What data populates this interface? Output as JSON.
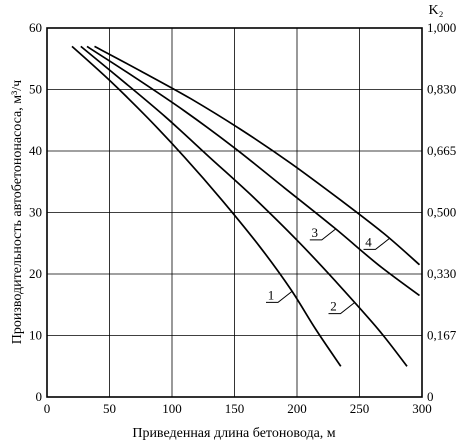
{
  "chart_data": {
    "type": "line",
    "xlabel": "Приведенная длина бетоновода, м",
    "ylabel": "Производительность автобетононасоса, м³/ч",
    "y2label": "K₂",
    "xlim": [
      0,
      300
    ],
    "ylim": [
      0,
      60
    ],
    "grid": true,
    "x_ticks": [
      "0",
      "50",
      "100",
      "150",
      "200",
      "250",
      "300"
    ],
    "y_ticks": [
      "0",
      "10",
      "20",
      "30",
      "40",
      "50",
      "60"
    ],
    "y2_ticks": [
      "0",
      "0,167",
      "0,330",
      "0,500",
      "0,665",
      "0,830",
      "1,000"
    ],
    "series": [
      {
        "name": "1",
        "x": [
          20,
          50,
          80,
          110,
          140,
          170,
          195,
          215,
          235
        ],
        "y": [
          57,
          51.5,
          45.5,
          39,
          32,
          24.5,
          17.5,
          11,
          5
        ]
      },
      {
        "name": "2",
        "x": [
          27,
          60,
          95,
          130,
          165,
          200,
          230,
          265,
          288
        ],
        "y": [
          57,
          51.5,
          45.5,
          39,
          32.5,
          25.5,
          19,
          11,
          5
        ]
      },
      {
        "name": "3",
        "x": [
          32,
          70,
          110,
          150,
          190,
          230,
          265,
          298
        ],
        "y": [
          57,
          52,
          46.5,
          40.5,
          34,
          27.5,
          21.5,
          16.5
        ]
      },
      {
        "name": "4",
        "x": [
          38,
          75,
          115,
          155,
          195,
          235,
          270,
          298
        ],
        "y": [
          57,
          53,
          48.5,
          43.5,
          38,
          32,
          26.5,
          21.5
        ]
      }
    ]
  }
}
